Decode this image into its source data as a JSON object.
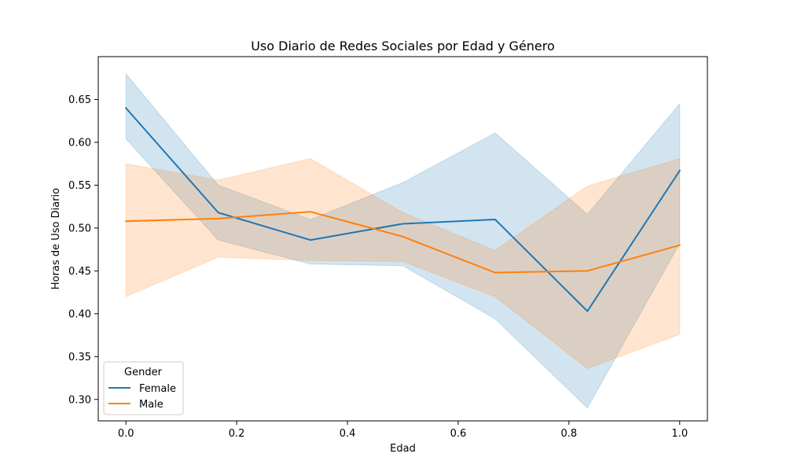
{
  "chart_data": {
    "type": "line",
    "title": "Uso Diario de Redes Sociales por Edad y Género",
    "xlabel": "Edad",
    "ylabel": "Horas de Uso Diario",
    "xlim": [
      -0.05,
      1.05
    ],
    "ylim": [
      0.275,
      0.7
    ],
    "xticks": [
      0.0,
      0.2,
      0.4,
      0.6,
      0.8,
      1.0
    ],
    "xtick_labels": [
      "0.0",
      "0.2",
      "0.4",
      "0.6",
      "0.8",
      "1.0"
    ],
    "yticks": [
      0.3,
      0.35,
      0.4,
      0.45,
      0.5,
      0.55,
      0.6,
      0.65
    ],
    "ytick_labels": [
      "0.30",
      "0.35",
      "0.40",
      "0.45",
      "0.50",
      "0.55",
      "0.60",
      "0.65"
    ],
    "grid": false,
    "legend": {
      "title": "Gender",
      "position": "lower-left"
    },
    "x": [
      0.0,
      0.1667,
      0.3333,
      0.5,
      0.6667,
      0.8333,
      1.0
    ],
    "series": [
      {
        "name": "Female",
        "color": "#1f77b4",
        "values": [
          0.64,
          0.518,
          0.486,
          0.505,
          0.51,
          0.403,
          0.567
        ],
        "ci_low": [
          0.604,
          0.486,
          0.458,
          0.456,
          0.394,
          0.29,
          0.482
        ],
        "ci_high": [
          0.68,
          0.55,
          0.51,
          0.553,
          0.611,
          0.516,
          0.645
        ]
      },
      {
        "name": "Male",
        "color": "#ff7f0e",
        "values": [
          0.508,
          0.511,
          0.519,
          0.49,
          0.448,
          0.45,
          0.48
        ],
        "ci_low": [
          0.42,
          0.466,
          0.462,
          0.461,
          0.42,
          0.336,
          0.376
        ],
        "ci_high": [
          0.575,
          0.556,
          0.581,
          0.518,
          0.474,
          0.549,
          0.581
        ]
      }
    ]
  }
}
